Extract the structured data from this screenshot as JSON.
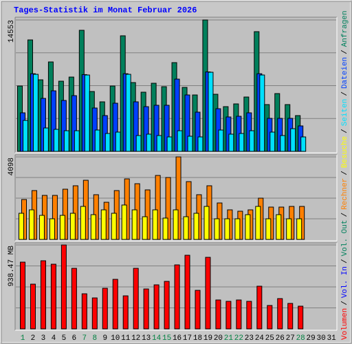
{
  "title": "Tages-Statistik im Monat Februar 2026",
  "categories": [
    "1",
    "2",
    "3",
    "4",
    "5",
    "6",
    "7",
    "8",
    "9",
    "10",
    "11",
    "12",
    "13",
    "14",
    "15",
    "16",
    "17",
    "18",
    "19",
    "20",
    "21",
    "22",
    "23",
    "24",
    "25",
    "26",
    "27",
    "28",
    "29",
    "30",
    "31"
  ],
  "weekends": [
    0,
    6,
    7,
    13,
    14,
    20,
    21,
    27
  ],
  "weekend_color": "#008040",
  "legend_separator": "/",
  "chart_data": [
    {
      "type": "bar",
      "ylim": [
        0,
        14553
      ],
      "yticks": [
        14553
      ],
      "grid": true,
      "series": [
        {
          "name": "Anfragen",
          "color": "#00805c",
          "values": [
            7238,
            12343,
            7924,
            9905,
            7772,
            8229,
            13410,
            6629,
            5486,
            7238,
            12800,
            7619,
            6553,
            7543,
            7162,
            9829,
            7086,
            6248,
            14553,
            6324,
            4953,
            5257,
            6019,
            13258,
            5181,
            6400,
            5181,
            3962,
            null,
            null,
            null
          ]
        },
        {
          "name": "Dateien",
          "color": "#0040ff",
          "values": [
            4267,
            8600,
            5867,
            6705,
            5638,
            6171,
            8500,
            4800,
            3962,
            5333,
            8600,
            5486,
            4952,
            5105,
            5105,
            8000,
            6248,
            4343,
            8800,
            4724,
            3810,
            3886,
            4267,
            8600,
            3657,
            3657,
            3657,
            2819,
            null,
            null,
            null
          ]
        },
        {
          "name": "Seiten",
          "color": "#00e0ff",
          "values": [
            3429,
            8533,
            2590,
            2438,
            2286,
            2286,
            8457,
            2362,
            1981,
            2133,
            8533,
            1752,
            1905,
            1752,
            1600,
            2286,
            1676,
            1600,
            8762,
            2362,
            1905,
            1981,
            2286,
            8457,
            2133,
            1752,
            2514,
            1600,
            null,
            null,
            null
          ]
        }
      ]
    },
    {
      "type": "bar",
      "ylim": [
        0,
        4098
      ],
      "yticks": [
        4098
      ],
      "grid": true,
      "series": [
        {
          "name": "Besuche",
          "color": "#ffff00",
          "values": [
            1298,
            1468,
            1195,
            1025,
            1195,
            1298,
            1639,
            1229,
            1468,
            1298,
            1708,
            1468,
            1127,
            1468,
            1059,
            1468,
            1127,
            1298,
            1639,
            1025,
            1025,
            1025,
            1229,
            1639,
            1025,
            1229,
            1025,
            1025,
            null,
            null,
            null
          ]
        },
        {
          "name": "Rechner",
          "color": "#ff8000",
          "values": [
            1981,
            2425,
            2186,
            2186,
            2493,
            2664,
            2937,
            2220,
            1844,
            2425,
            3005,
            2766,
            2459,
            3176,
            3074,
            4098,
            2869,
            2220,
            2664,
            1810,
            1468,
            1400,
            1468,
            2049,
            1605,
            1605,
            1639,
            1639,
            null,
            null,
            null
          ]
        }
      ]
    },
    {
      "type": "bar",
      "ylim": [
        0,
        938.47
      ],
      "yticks": [
        {
          "value": 938.47,
          "label": "938.47 MB"
        }
      ],
      "grid": true,
      "series": [
        {
          "name": "Vol. Out",
          "color": "#00805c",
          "values": [
            null,
            null,
            null,
            null,
            null,
            null,
            null,
            null,
            null,
            null,
            null,
            null,
            null,
            null,
            null,
            null,
            null,
            null,
            null,
            null,
            null,
            null,
            null,
            null,
            null,
            null,
            null,
            null,
            null,
            null,
            null
          ]
        },
        {
          "name": "Vol. In",
          "color": "#0000ff",
          "values": [
            null,
            null,
            null,
            null,
            null,
            null,
            null,
            null,
            null,
            null,
            null,
            null,
            null,
            null,
            null,
            null,
            null,
            null,
            null,
            null,
            null,
            null,
            null,
            null,
            null,
            null,
            null,
            null,
            null,
            null,
            null
          ]
        },
        {
          "name": "Volumen",
          "color": "#ff0000",
          "values": [
            746.1,
            500,
            761.5,
            723,
            938.47,
            676.9,
            392.3,
            346.1,
            453.8,
            553.8,
            369.2,
            676.9,
            446.1,
            492.3,
            530.8,
            715.4,
            823.1,
            430.8,
            800,
            323.1,
            307.7,
            323.1,
            307.7,
            476.9,
            261.5,
            338.5,
            284.6,
            253.8,
            null,
            null,
            null
          ]
        }
      ]
    }
  ]
}
